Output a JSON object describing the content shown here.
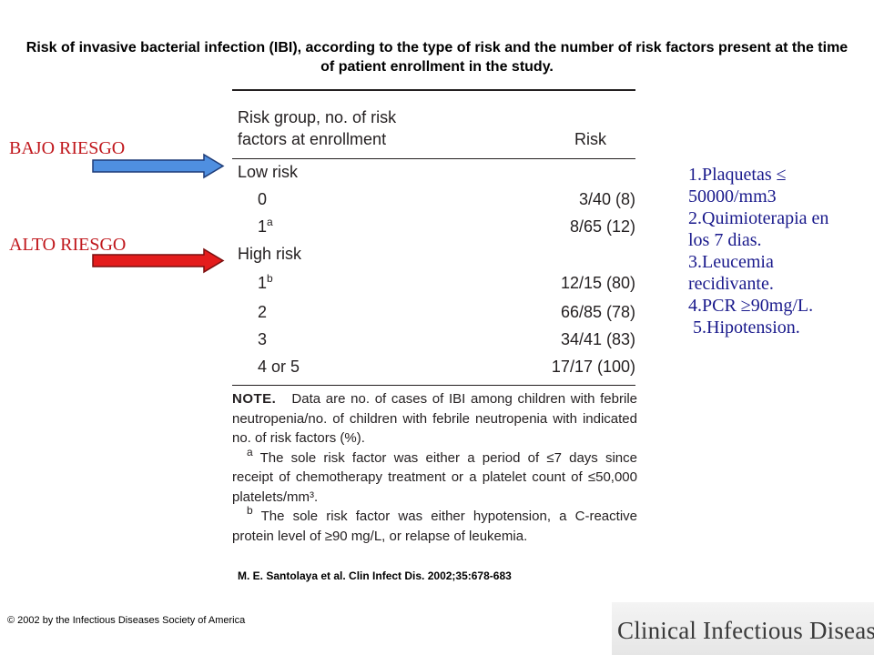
{
  "title": "Risk of invasive bacterial infection (IBI), according to the type of risk and the number of risk factors present at the time of patient enrollment in the study.",
  "labels": {
    "low_risk": "BAJO RIESGO",
    "high_risk": "ALTO RIESGO"
  },
  "colors": {
    "label_text": "#c0171c",
    "low_arrow": "#4f8fe0",
    "high_arrow": "#e41c1c",
    "list_text": "#1a1a8c"
  },
  "table": {
    "header_col1_line1": "Risk group, no. of risk",
    "header_col1_line2": "factors at enrollment",
    "header_col2": "Risk",
    "rows": [
      {
        "label": "Low risk",
        "sup": "",
        "value": ""
      },
      {
        "label": "0",
        "sup": "",
        "value": "3/40 (8)"
      },
      {
        "label": "1",
        "sup": "a",
        "value": "8/65 (12)"
      },
      {
        "label": "High risk",
        "sup": "",
        "value": ""
      },
      {
        "label": "1",
        "sup": "b",
        "value": "12/15 (80)"
      },
      {
        "label": "2",
        "sup": "",
        "value": "66/85 (78)"
      },
      {
        "label": "3",
        "sup": "",
        "value": "34/41 (83)"
      },
      {
        "label": "4 or 5",
        "sup": "",
        "value": "17/17 (100)"
      }
    ],
    "note_label": "NOTE.",
    "note_text": "Data are no. of cases of IBI among children with febrile neutropenia/no. of children with febrile neutropenia with indicated no. of risk factors (%).",
    "footnote_a_mark": "a",
    "footnote_a": "The sole risk factor was either a period of ≤7 days since receipt of chemotherapy treatment or a platelet count of ≤50,000 platelets/mm³.",
    "footnote_b_mark": "b",
    "footnote_b": "The sole risk factor was either hypotension, a C-reactive protein level of ≥90 mg/L, or relapse of leukemia."
  },
  "citation": "M. E. Santolaya et al. Clin Infect Dis. 2002;35:678-683",
  "risk_factors": [
    "1.Plaquetas ≤",
    "50000/mm3",
    "2.Quimioterapia en",
    "los 7 dias.",
    "3.Leucemia",
    "recidivante.",
    "4.PCR ≥90mg/L.",
    " 5.Hipotension."
  ],
  "copyright": "© 2002 by the Infectious Diseases Society of America",
  "journal_logo": "Clinical Infectious Diseases"
}
